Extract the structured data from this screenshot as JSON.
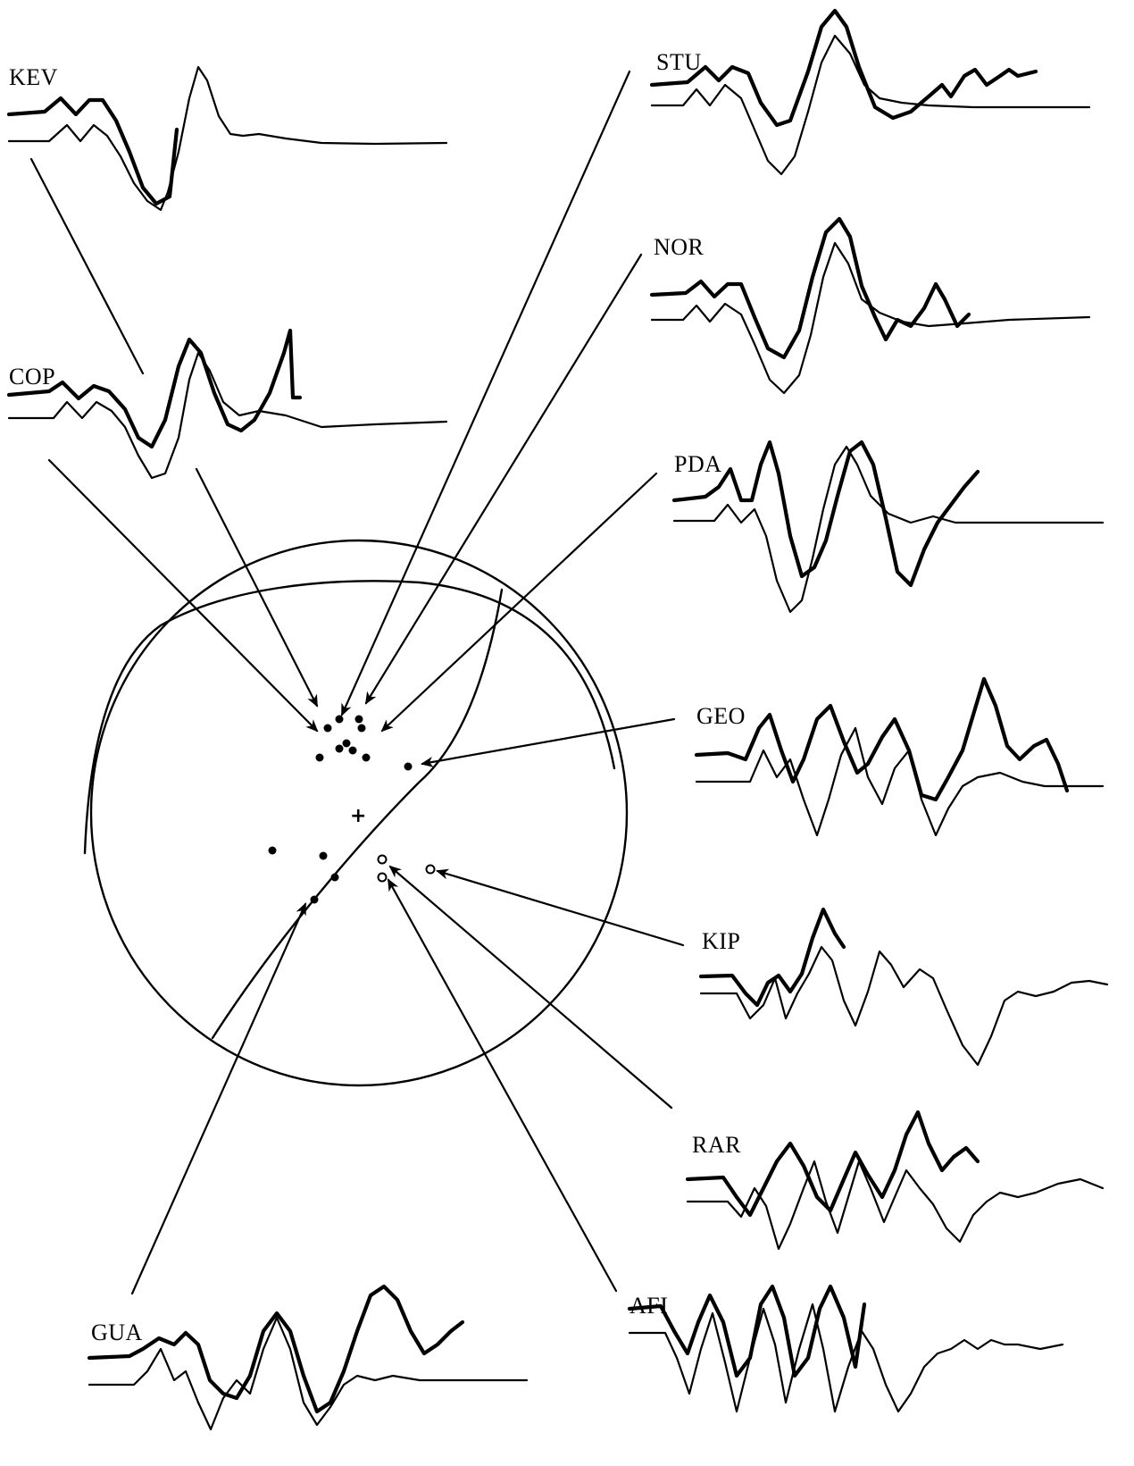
{
  "figure": {
    "stations": [
      {
        "id": "kev",
        "label": "KEV"
      },
      {
        "id": "cop",
        "label": "COP"
      },
      {
        "id": "stu",
        "label": "STU"
      },
      {
        "id": "nor",
        "label": "NOR"
      },
      {
        "id": "pda",
        "label": "PDA"
      },
      {
        "id": "geo",
        "label": "GEO"
      },
      {
        "id": "kip",
        "label": "KIP"
      },
      {
        "id": "rar",
        "label": "RAR"
      },
      {
        "id": "gua",
        "label": "GUA"
      },
      {
        "id": "afi",
        "label": "AFI"
      }
    ],
    "center_mark": "+",
    "colors": {
      "ink": "#000000",
      "background": "#ffffff"
    }
  }
}
